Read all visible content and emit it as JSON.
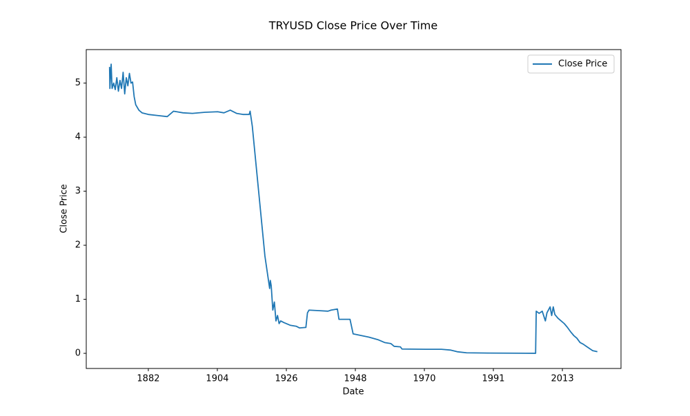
{
  "chart_data": {
    "type": "line",
    "title": "TRYUSD Close Price Over Time",
    "xlabel": "Date",
    "ylabel": "Close Price",
    "x": [
      1869.7,
      1869.8,
      1870.2,
      1870.5,
      1871,
      1871.5,
      1872,
      1872.5,
      1873,
      1873.5,
      1874,
      1874.5,
      1875,
      1875.5,
      1876,
      1876.5,
      1877,
      1877.5,
      1878,
      1879,
      1880,
      1882,
      1885,
      1888,
      1890,
      1893,
      1896,
      1900,
      1904,
      1906,
      1908,
      1910,
      1912,
      1914,
      1914.3,
      1915,
      1917,
      1919,
      1920.5,
      1920.7,
      1921,
      1921.5,
      1922,
      1922.5,
      1923,
      1923.5,
      1924,
      1925,
      1927,
      1929,
      1930,
      1932,
      1932.5,
      1933,
      1936,
      1939,
      1940,
      1942,
      1942.5,
      1946,
      1947,
      1952,
      1955,
      1957,
      1959,
      1960,
      1962,
      1962.5,
      1970,
      1975,
      1978,
      1980,
      1983,
      1990,
      2004.9,
      2005.1,
      2006,
      2007,
      2008,
      2008.5,
      2009.5,
      2010,
      2010.5,
      2011,
      2012,
      2013,
      2014,
      2015,
      2016,
      2017,
      2018,
      2019,
      2020,
      2021,
      2022,
      2023,
      2024.5
    ],
    "series": [
      {
        "name": "Close Price",
        "color": "#1f77b4",
        "values": [
          5.3,
          4.9,
          5.35,
          4.9,
          5.0,
          4.88,
          5.1,
          4.85,
          5.05,
          4.9,
          5.2,
          4.8,
          5.1,
          4.95,
          5.18,
          5.0,
          5.02,
          4.75,
          4.6,
          4.5,
          4.45,
          4.42,
          4.4,
          4.38,
          4.48,
          4.45,
          4.44,
          4.46,
          4.47,
          4.45,
          4.5,
          4.44,
          4.42,
          4.42,
          4.48,
          4.2,
          3.0,
          1.8,
          1.2,
          1.35,
          1.25,
          0.8,
          0.95,
          0.6,
          0.7,
          0.55,
          0.6,
          0.57,
          0.52,
          0.5,
          0.47,
          0.48,
          0.75,
          0.8,
          0.79,
          0.78,
          0.8,
          0.82,
          0.63,
          0.63,
          0.36,
          0.3,
          0.25,
          0.2,
          0.18,
          0.13,
          0.12,
          0.08,
          0.075,
          0.075,
          0.06,
          0.03,
          0.01,
          0.005,
          0.001,
          0.78,
          0.74,
          0.78,
          0.6,
          0.75,
          0.86,
          0.7,
          0.86,
          0.72,
          0.65,
          0.6,
          0.55,
          0.48,
          0.4,
          0.33,
          0.28,
          0.2,
          0.17,
          0.13,
          0.09,
          0.05,
          0.03
        ]
      }
    ],
    "xlim": [
      1862.3,
      2032
    ],
    "ylim": [
      -0.28,
      5.62
    ],
    "xticks": [
      {
        "value": 1882,
        "label": "1882"
      },
      {
        "value": 1903.9,
        "label": "1904"
      },
      {
        "value": 1925.8,
        "label": "1926"
      },
      {
        "value": 1947.7,
        "label": "1948"
      },
      {
        "value": 1969.6,
        "label": "1970"
      },
      {
        "value": 1991.5,
        "label": "1991"
      },
      {
        "value": 2013.4,
        "label": "2013"
      }
    ],
    "yticks": [
      0,
      1,
      2,
      3,
      4,
      5
    ],
    "legend": "upper right"
  }
}
